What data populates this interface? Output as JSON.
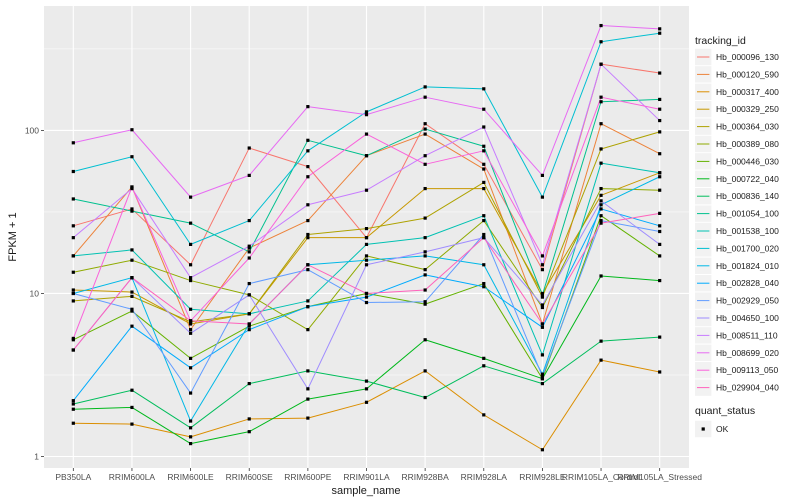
{
  "chart_data": {
    "type": "line",
    "title": "",
    "xlabel": "sample_name",
    "ylabel": "FPKM + 1",
    "y_scale": "log10",
    "ylim": [
      0.85,
      580
    ],
    "y_ticks": [
      1,
      10,
      100
    ],
    "y_tick_labels": [
      "1",
      "10",
      "100"
    ],
    "grid": true,
    "background": "#ebebeb",
    "legend_position": "right",
    "categories": [
      "PB350LA",
      "RRIM600LA",
      "RRIM600LE",
      "RRIM600SE",
      "RRIM600PE",
      "RRIM901LA",
      "RRIM928BA",
      "RRIM928LA",
      "RRIM928LE",
      "RRIM105LA_Control",
      "RRIM105LA_Stressed"
    ],
    "legend": {
      "color_title": "tracking_id",
      "shape_title": "quant_status",
      "shape_items": [
        {
          "label": "OK",
          "shape": "square"
        }
      ]
    },
    "series": [
      {
        "name": "Hb_000096_130",
        "color": "#F8766D",
        "values": [
          26,
          33,
          15,
          78,
          60,
          22,
          110,
          62,
          14,
          255,
          225
        ]
      },
      {
        "name": "Hb_000120_590",
        "color": "#EC8239",
        "values": [
          17,
          45,
          6,
          19,
          28,
          70,
          95,
          58,
          6.5,
          110,
          72
        ]
      },
      {
        "name": "Hb_000317_400",
        "color": "#DB8E00",
        "values": [
          1.6,
          1.58,
          1.32,
          1.7,
          1.72,
          2.15,
          3.35,
          1.8,
          1.1,
          3.9,
          3.3
        ]
      },
      {
        "name": "Hb_000329_250",
        "color": "#C79800",
        "values": [
          10.5,
          10.2,
          6.5,
          7.5,
          22,
          22,
          44,
          44,
          10,
          40,
          55
        ]
      },
      {
        "name": "Hb_000364_030",
        "color": "#AEA200",
        "values": [
          9,
          9.6,
          6.7,
          7.5,
          23,
          25,
          29,
          48,
          9.5,
          77,
          98
        ]
      },
      {
        "name": "Hb_000389_080",
        "color": "#8FAA00",
        "values": [
          13.5,
          16,
          12,
          9.8,
          6,
          17,
          14,
          28,
          8.2,
          44,
          43
        ]
      },
      {
        "name": "Hb_000446_030",
        "color": "#64B200",
        "values": [
          5.2,
          7.8,
          4,
          6.3,
          8.3,
          10,
          8.6,
          11.5,
          3,
          30,
          17
        ]
      },
      {
        "name": "Hb_000722_040",
        "color": "#00B81B",
        "values": [
          1.95,
          2.0,
          1.2,
          1.42,
          2.25,
          2.6,
          5.2,
          4.0,
          3.0,
          12.8,
          12.0
        ]
      },
      {
        "name": "Hb_000836_140",
        "color": "#00BD5C",
        "values": [
          2.1,
          2.55,
          1.5,
          2.8,
          3.35,
          2.9,
          2.3,
          3.6,
          2.8,
          5.1,
          5.4
        ]
      },
      {
        "name": "Hb_001054_100",
        "color": "#00C08E",
        "values": [
          38,
          32,
          27,
          18,
          87,
          70,
          102,
          80,
          9.8,
          150,
          155
        ]
      },
      {
        "name": "Hb_001538_100",
        "color": "#00C1B2",
        "values": [
          17,
          18.5,
          8,
          7.5,
          9,
          20,
          22,
          30,
          4.2,
          63,
          55
        ]
      },
      {
        "name": "Hb_001700_020",
        "color": "#00BFD1",
        "values": [
          56,
          69,
          20,
          28,
          75,
          130,
          185,
          180,
          39,
          350,
          395
        ]
      },
      {
        "name": "Hb_001824_010",
        "color": "#00B8E7",
        "values": [
          10,
          12.5,
          1.65,
          6.5,
          15,
          16,
          17,
          15,
          3.2,
          35,
          52
        ]
      },
      {
        "name": "Hb_002828_040",
        "color": "#00ABFD",
        "values": [
          2.2,
          6.3,
          3.5,
          6,
          8.3,
          9.5,
          13,
          11,
          6.2,
          33,
          26
        ]
      },
      {
        "name": "Hb_002929_050",
        "color": "#619CFF",
        "values": [
          10,
          8,
          2.45,
          11.5,
          14,
          8.8,
          8.9,
          23,
          3.1,
          28,
          24
        ]
      },
      {
        "name": "Hb_004650_100",
        "color": "#9F8CFF",
        "values": [
          4.5,
          12.5,
          5.7,
          9.8,
          2.6,
          15,
          18,
          22,
          8.5,
          37,
          20
        ]
      },
      {
        "name": "Hb_008511_110",
        "color": "#C77CFF",
        "values": [
          22,
          44,
          12.5,
          19.5,
          35,
          43,
          70,
          105,
          15,
          255,
          115
        ]
      },
      {
        "name": "Hb_008699_020",
        "color": "#E76BF3",
        "values": [
          84,
          101,
          39,
          53,
          140,
          125,
          160,
          135,
          53,
          440,
          420
        ]
      },
      {
        "name": "Hb_009113_050",
        "color": "#FA62DB",
        "values": [
          5.3,
          45,
          6.8,
          16.5,
          52,
          95,
          62,
          75,
          17,
          160,
          135
        ]
      },
      {
        "name": "Hb_029904_040",
        "color": "#FF62BC",
        "values": [
          4.5,
          12.5,
          6.8,
          6.5,
          15,
          10,
          10.5,
          22,
          6.5,
          27,
          31
        ]
      }
    ]
  }
}
